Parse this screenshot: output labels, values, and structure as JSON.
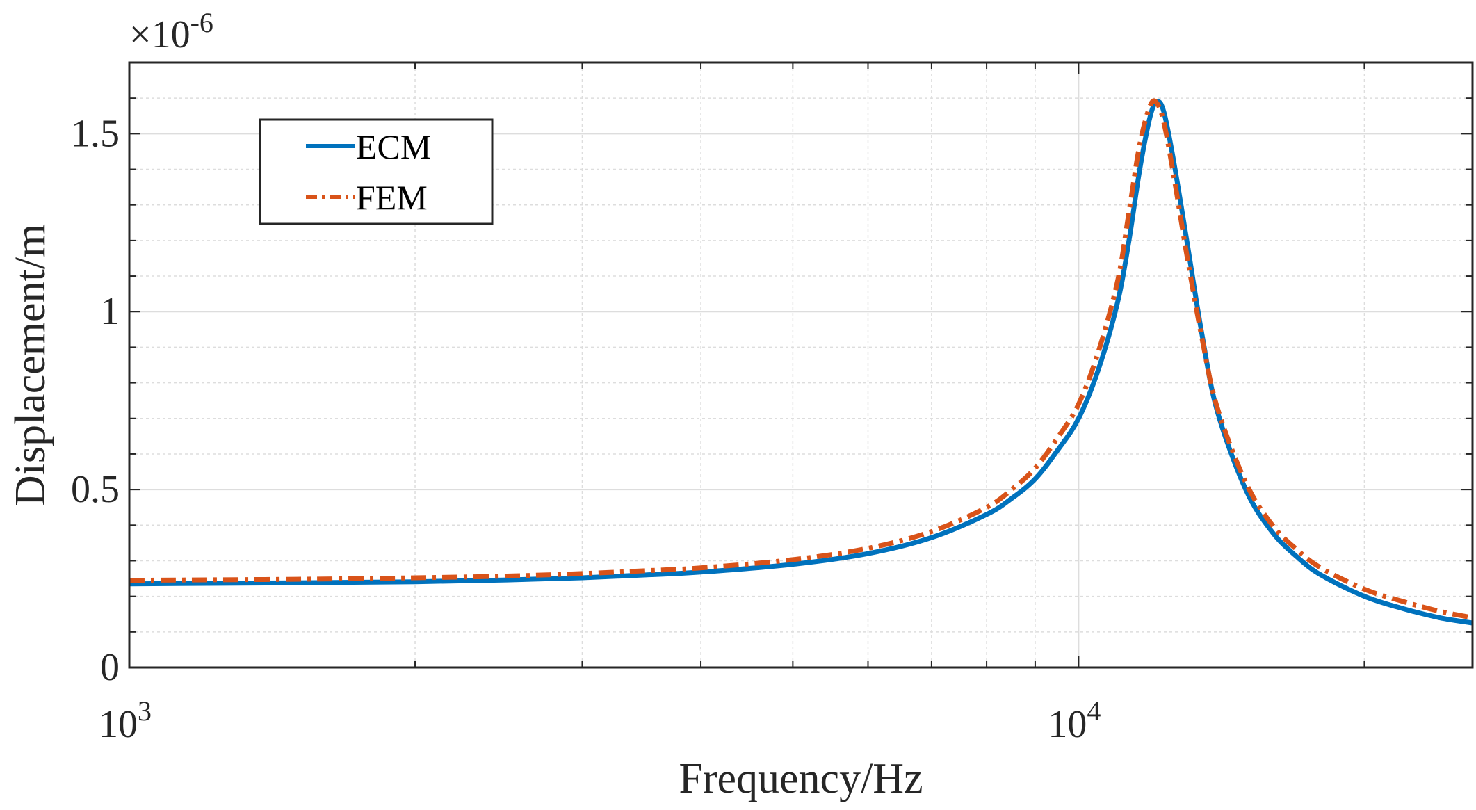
{
  "chart_data": {
    "type": "line",
    "x_scale": "log",
    "xlabel": "Frequency/Hz",
    "ylabel": "Displacement/m",
    "xlim": [
      1000,
      26000
    ],
    "ylim": [
      0,
      1.7
    ],
    "y_multiplier": "×10",
    "y_exponent": "-6",
    "x_ticks": [
      {
        "value": 1000,
        "base": "10",
        "exp": "3"
      },
      {
        "value": 10000,
        "base": "10",
        "exp": "4"
      }
    ],
    "y_ticks": [
      {
        "value": 0,
        "label": "0"
      },
      {
        "value": 0.5,
        "label": "0.5"
      },
      {
        "value": 1,
        "label": "1"
      },
      {
        "value": 1.5,
        "label": "1.5"
      }
    ],
    "grid": true,
    "legend_position": "top-left",
    "series": [
      {
        "name": "ECM",
        "color": "#0072BD",
        "style": "solid",
        "x": [
          1000,
          1500,
          2000,
          2500,
          3000,
          3500,
          4000,
          5000,
          6000,
          7000,
          8000,
          8500,
          9000,
          9500,
          10000,
          10500,
          11000,
          11300,
          11600,
          11900,
          12100,
          12300,
          12600,
          13000,
          13500,
          14000,
          15000,
          16000,
          17000,
          18000,
          20000,
          22000,
          24000,
          26000
        ],
        "y": [
          0.235,
          0.238,
          0.241,
          0.246,
          0.252,
          0.26,
          0.268,
          0.29,
          0.32,
          0.365,
          0.43,
          0.475,
          0.53,
          0.61,
          0.7,
          0.84,
          1.03,
          1.2,
          1.4,
          1.55,
          1.59,
          1.56,
          1.42,
          1.2,
          0.93,
          0.72,
          0.5,
          0.38,
          0.31,
          0.26,
          0.2,
          0.165,
          0.14,
          0.125
        ]
      },
      {
        "name": "FEM",
        "color": "#D95319",
        "style": "dash-dot",
        "x": [
          1000,
          1500,
          2000,
          2500,
          3000,
          3500,
          4000,
          5000,
          6000,
          7000,
          8000,
          8500,
          9000,
          9500,
          10000,
          10500,
          11000,
          11300,
          11600,
          11900,
          12100,
          12300,
          12600,
          13000,
          13500,
          14000,
          15000,
          16000,
          17000,
          18000,
          20000,
          22000,
          24000,
          26000
        ],
        "y": [
          0.245,
          0.248,
          0.252,
          0.257,
          0.264,
          0.272,
          0.28,
          0.303,
          0.335,
          0.382,
          0.45,
          0.5,
          0.56,
          0.645,
          0.74,
          0.89,
          1.09,
          1.28,
          1.47,
          1.58,
          1.585,
          1.53,
          1.38,
          1.16,
          0.92,
          0.73,
          0.52,
          0.4,
          0.33,
          0.28,
          0.22,
          0.185,
          0.158,
          0.14
        ]
      }
    ]
  }
}
